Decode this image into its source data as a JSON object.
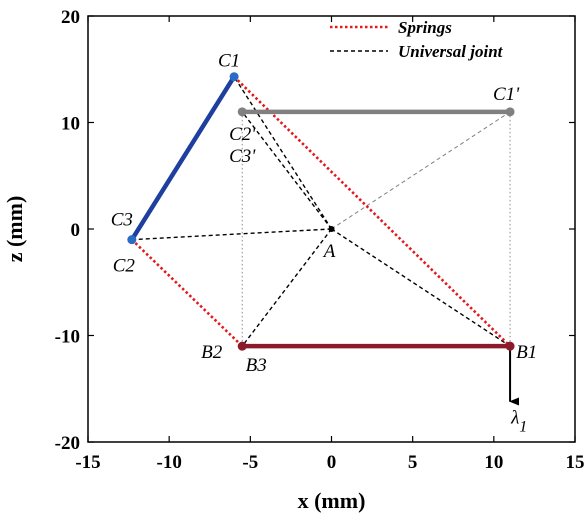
{
  "chart_data": {
    "type": "scatter",
    "xlabel": "x (mm)",
    "ylabel": "z (mm)",
    "xlim": [
      -15,
      15
    ],
    "ylim": [
      -20,
      20
    ],
    "xticks": [
      -15,
      -10,
      -5,
      0,
      5,
      10,
      15
    ],
    "yticks": [
      -20,
      -10,
      0,
      10,
      20
    ],
    "legend_position": "top-right",
    "legend": [
      {
        "label": "Springs",
        "color": "#e31a1c",
        "style": "dotted"
      },
      {
        "label": "Universal joint",
        "color": "#000000",
        "style": "dashed"
      }
    ],
    "points": [
      {
        "label": "C1",
        "x": -6.0,
        "y": 14.3,
        "color": "#2b6cc4"
      },
      {
        "label": "C1'",
        "x": 11.0,
        "y": 11.0,
        "color": "#808080"
      },
      {
        "label": "C2'",
        "x": -5.5,
        "y": 11.0,
        "color": "#808080"
      },
      {
        "label": "C3'",
        "x": -5.5,
        "y": 11.0,
        "color": "#808080"
      },
      {
        "label": "C3",
        "x": -12.3,
        "y": -1.0,
        "color": "#2b6cc4"
      },
      {
        "label": "C2",
        "x": -12.3,
        "y": -1.0,
        "color": "#2b6cc4"
      },
      {
        "label": "A",
        "x": 0,
        "y": 0,
        "color": "#000000"
      },
      {
        "label": "B2",
        "x": -5.5,
        "y": -11.0,
        "color": "#8b1a2b"
      },
      {
        "label": "B3",
        "x": -5.5,
        "y": -11.0,
        "color": "#8b1a2b"
      },
      {
        "label": "B1",
        "x": 11.0,
        "y": -11.0,
        "color": "#8b1a2b"
      }
    ],
    "segments": [
      {
        "kind": "link",
        "from": [
          -12.3,
          -1.0
        ],
        "to": [
          -6.0,
          14.3
        ],
        "color": "#1f3fa0"
      },
      {
        "kind": "link",
        "from": [
          -5.5,
          11.0
        ],
        "to": [
          11.0,
          11.0
        ],
        "color": "#808080"
      },
      {
        "kind": "link",
        "from": [
          -5.5,
          -11.0
        ],
        "to": [
          11.0,
          -11.0
        ],
        "color": "#8b1a2b"
      },
      {
        "kind": "spring",
        "from": [
          -6.0,
          14.3
        ],
        "to": [
          11.0,
          -11.0
        ],
        "color": "#e31a1c"
      },
      {
        "kind": "spring",
        "from": [
          -12.3,
          -1.0
        ],
        "to": [
          -5.5,
          -11.0
        ],
        "color": "#e31a1c"
      },
      {
        "kind": "joint",
        "from": [
          0,
          0
        ],
        "to": [
          -12.3,
          -1.0
        ],
        "color": "#000000"
      },
      {
        "kind": "joint",
        "from": [
          0,
          0
        ],
        "to": [
          -5.5,
          11.0
        ],
        "color": "#000000"
      },
      {
        "kind": "joint",
        "from": [
          0,
          0
        ],
        "to": [
          -5.5,
          -11.0
        ],
        "color": "#000000"
      },
      {
        "kind": "joint",
        "from": [
          0,
          0
        ],
        "to": [
          11.0,
          -11.0
        ],
        "color": "#000000"
      },
      {
        "kind": "joint",
        "from": [
          0,
          0
        ],
        "to": [
          -6.0,
          14.3
        ],
        "color": "#000000"
      },
      {
        "kind": "joint-ghost",
        "from": [
          0,
          0
        ],
        "to": [
          11.0,
          11.0
        ],
        "color": "#808080"
      },
      {
        "kind": "guide",
        "from": [
          11.0,
          11.0
        ],
        "to": [
          11.0,
          -11.0
        ],
        "color": "#808080"
      },
      {
        "kind": "guide",
        "from": [
          -5.5,
          11.0
        ],
        "to": [
          -5.5,
          -11.0
        ],
        "color": "#808080"
      }
    ],
    "arrow": {
      "from": [
        11.0,
        -11.0
      ],
      "to": [
        11.0,
        -16.2
      ],
      "label": "λ",
      "subscript": "1"
    }
  }
}
